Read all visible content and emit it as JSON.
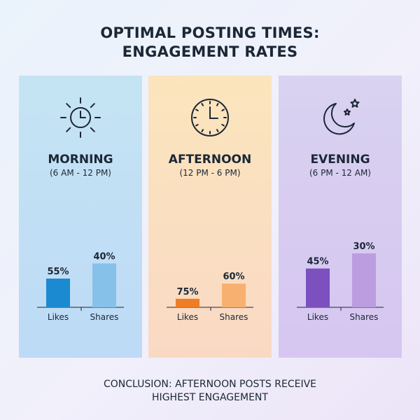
{
  "title": {
    "line1": "OPTIMAL POSTING TIMES:",
    "line2": "ENGAGEMENT RATES"
  },
  "panels": [
    {
      "name": "MORNING",
      "range": "(6 AM - 12 PM)",
      "icon": "sun-clock-icon"
    },
    {
      "name": "AFTERNOON",
      "range": "(12 PM - 6 PM)",
      "icon": "clock-icon"
    },
    {
      "name": "EVENING",
      "range": "(6 PM - 12 AM)",
      "icon": "moon-stars-icon"
    }
  ],
  "chart_data": [
    {
      "type": "bar",
      "categories": [
        "Likes",
        "Shares"
      ],
      "values": [
        55,
        40
      ],
      "value_labels": [
        "55%",
        "40%"
      ],
      "colors": [
        "#1b8ad0",
        "#86c1ea"
      ]
    },
    {
      "type": "bar",
      "categories": [
        "Likes",
        "Shares"
      ],
      "values": [
        75,
        60
      ],
      "value_labels": [
        "75%",
        "60%"
      ],
      "colors": [
        "#ef7d25",
        "#f8b070"
      ]
    },
    {
      "type": "bar",
      "categories": [
        "Likes",
        "Shares"
      ],
      "values": [
        45,
        30
      ],
      "value_labels": [
        "45%",
        "30%"
      ],
      "colors": [
        "#7c50be",
        "#bb9de0"
      ]
    }
  ],
  "conclusion": {
    "line1": "CONCLUSION: AFTERNOON POSTS RECEIVE",
    "line2": "HIGHEST ENGAGEMENT"
  }
}
